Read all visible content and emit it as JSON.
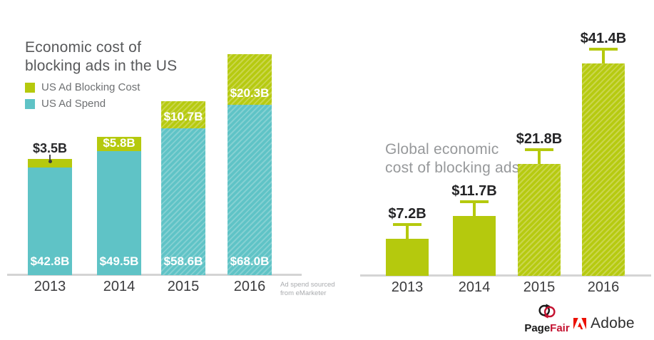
{
  "chart_data": [
    {
      "type": "bar",
      "stacked": true,
      "title": "Economic cost of blocking ads in the US",
      "categories": [
        "2013",
        "2014",
        "2015",
        "2016"
      ],
      "series": [
        {
          "name": "US Ad Spend",
          "color": "#5fc3c6",
          "values": [
            42.8,
            49.5,
            58.6,
            68.0
          ],
          "value_labels": [
            "$42.8B",
            "$49.5B",
            "$58.6B",
            "$68.0B"
          ]
        },
        {
          "name": "US Ad Blocking Cost",
          "color": "#b5c90d",
          "values": [
            3.5,
            5.8,
            10.7,
            20.3
          ],
          "value_labels": [
            "$3.5B",
            "$5.8B",
            "$10.7B",
            "$20.3B"
          ]
        }
      ],
      "hatched_categories": [
        "2015",
        "2016"
      ],
      "legend_position": "top-left",
      "grid": false,
      "ylim": [
        0,
        90
      ],
      "note": "Ad spend sourced from eMarketer"
    },
    {
      "type": "bar",
      "stacked": false,
      "title": "Global economic cost of blocking ads",
      "categories": [
        "2013",
        "2014",
        "2015",
        "2016"
      ],
      "values": [
        7.2,
        11.7,
        21.8,
        41.4
      ],
      "value_labels": [
        "$7.2B",
        "$11.7B",
        "$21.8B",
        "$41.4B"
      ],
      "error_bars": true,
      "hatched_categories": [
        "2015",
        "2016"
      ],
      "grid": false,
      "ylim": [
        0,
        45
      ]
    }
  ],
  "left_chart": {
    "title_lines": [
      "Economic cost of",
      "blocking ads in the US"
    ],
    "legend": [
      {
        "label": "US Ad Blocking Cost",
        "color": "#b5c90d"
      },
      {
        "label": "US Ad Spend",
        "color": "#5fc3c6"
      }
    ],
    "note_lines": [
      "Ad spend sourced",
      "from eMarketer"
    ]
  },
  "right_chart": {
    "title_lines": [
      "Global economic",
      "cost of blocking ads"
    ]
  },
  "footer": {
    "pagefair": {
      "part1": "Page",
      "part2": "Fair"
    },
    "adobe": {
      "label": "Adobe"
    }
  },
  "colors": {
    "lime": "#b5c90d",
    "teal": "#5fc3c6",
    "title_dark": "#57585a",
    "title_gray": "#97999b",
    "year_text": "#3b3b3d",
    "axis_gray": "#d4d4d4",
    "pagefair_red": "#c41230",
    "adobe_red": "#eb1000",
    "white_label": "#ffffff"
  }
}
